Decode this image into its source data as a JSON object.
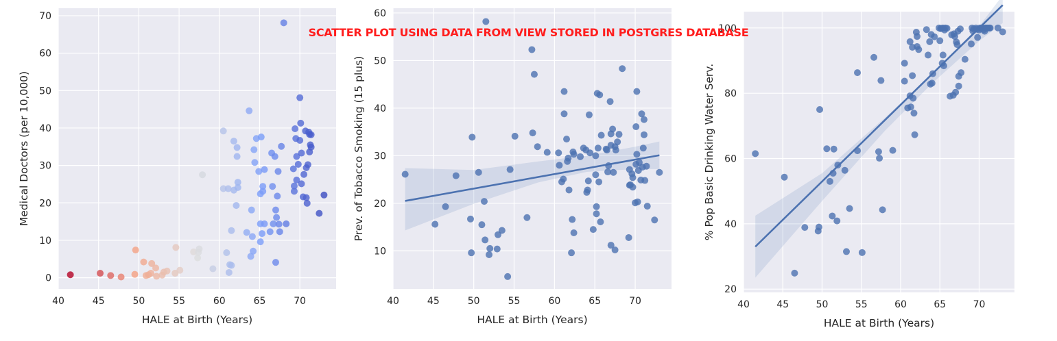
{
  "title": "SCATTER PLOT USING DATA FROM VIEW STORED IN POSTGRES DATABASE",
  "chart_data": [
    {
      "type": "scatter",
      "xlabel": "HALE at Birth (Years)",
      "ylabel": "Medical Doctors (per 10,000)",
      "xlim": [
        40,
        74.5
      ],
      "ylim": [
        -3,
        72
      ],
      "xticks": [
        "40",
        "45",
        "50",
        "55",
        "60",
        "65",
        "70"
      ],
      "yticks": [
        "0",
        "10",
        "20",
        "30",
        "40",
        "50",
        "60",
        "70"
      ],
      "color_scale": "coolwarm (x reversed: low HALE red, high HALE blue)",
      "grid": true,
      "points": [
        [
          41.5,
          0.8
        ],
        [
          45.2,
          1.2
        ],
        [
          46.5,
          0.6
        ],
        [
          47.8,
          0.2
        ],
        [
          49.5,
          0.9
        ],
        [
          49.6,
          7.4
        ],
        [
          50.6,
          4.2
        ],
        [
          50.9,
          0.6
        ],
        [
          51.2,
          0.8
        ],
        [
          51.5,
          1.2
        ],
        [
          51.6,
          3.8
        ],
        [
          52.1,
          2.6
        ],
        [
          52.2,
          0.4
        ],
        [
          52.9,
          0.7
        ],
        [
          53.1,
          1.5
        ],
        [
          53.5,
          1.8
        ],
        [
          54.5,
          1.2
        ],
        [
          54.6,
          8.1
        ],
        [
          55.1,
          2.0
        ],
        [
          56.8,
          6.9
        ],
        [
          57.3,
          5.3
        ],
        [
          57.4,
          6.8
        ],
        [
          57.5,
          7.7
        ],
        [
          57.9,
          27.5
        ],
        [
          59.2,
          2.4
        ],
        [
          60.5,
          39.2
        ],
        [
          60.5,
          23.8
        ],
        [
          60.9,
          6.7
        ],
        [
          61.1,
          23.8
        ],
        [
          61.2,
          1.4
        ],
        [
          61.3,
          3.5
        ],
        [
          61.5,
          3.3
        ],
        [
          61.5,
          12.6
        ],
        [
          61.8,
          23.4
        ],
        [
          61.8,
          36.5
        ],
        [
          62.1,
          19.3
        ],
        [
          62.2,
          34.8
        ],
        [
          62.2,
          32.4
        ],
        [
          62.3,
          24.1
        ],
        [
          62.3,
          25.5
        ],
        [
          63.4,
          12.1
        ],
        [
          63.7,
          44.6
        ],
        [
          63.9,
          5.7
        ],
        [
          64.0,
          18.1
        ],
        [
          64.1,
          11.0
        ],
        [
          64.2,
          7.1
        ],
        [
          64.3,
          34.2
        ],
        [
          64.4,
          30.8
        ],
        [
          64.6,
          37.2
        ],
        [
          64.9,
          28.4
        ],
        [
          65.1,
          22.4
        ],
        [
          65.1,
          9.6
        ],
        [
          65.1,
          14.4
        ],
        [
          65.2,
          37.6
        ],
        [
          65.3,
          11.8
        ],
        [
          65.4,
          24.4
        ],
        [
          65.4,
          23.1
        ],
        [
          65.6,
          14.4
        ],
        [
          65.6,
          28.9
        ],
        [
          66.3,
          12.3
        ],
        [
          66.5,
          33.3
        ],
        [
          66.6,
          24.4
        ],
        [
          66.7,
          14.4
        ],
        [
          66.9,
          32.4
        ],
        [
          67.0,
          4.1
        ],
        [
          67.0,
          18.1
        ],
        [
          67.1,
          16.1
        ],
        [
          67.2,
          21.8
        ],
        [
          67.3,
          28.4
        ],
        [
          67.4,
          14.3
        ],
        [
          67.5,
          12.3
        ],
        [
          67.7,
          35.1
        ],
        [
          68.0,
          68.1
        ],
        [
          68.3,
          14.4
        ],
        [
          69.2,
          29.1
        ],
        [
          69.3,
          24.5
        ],
        [
          69.3,
          23.1
        ],
        [
          69.4,
          39.8
        ],
        [
          69.5,
          37.2
        ],
        [
          69.6,
          26.1
        ],
        [
          69.6,
          32.4
        ],
        [
          69.8,
          30.3
        ],
        [
          70.0,
          48.1
        ],
        [
          70.0,
          36.7
        ],
        [
          70.1,
          41.3
        ],
        [
          70.2,
          33.3
        ],
        [
          70.2,
          25.1
        ],
        [
          70.4,
          21.6
        ],
        [
          70.5,
          27.6
        ],
        [
          70.7,
          39.2
        ],
        [
          70.8,
          21.4
        ],
        [
          70.8,
          29.4
        ],
        [
          70.9,
          19.9
        ],
        [
          71.0,
          30.2
        ],
        [
          71.1,
          38.9
        ],
        [
          71.2,
          38.3
        ],
        [
          71.2,
          33.6
        ],
        [
          71.3,
          35.5
        ],
        [
          71.4,
          34.9
        ],
        [
          71.4,
          38.2
        ],
        [
          72.4,
          17.2
        ],
        [
          73.0,
          22.1
        ]
      ]
    },
    {
      "type": "scatter",
      "xlabel": "HALE at Birth (Years)",
      "ylabel": "Prev. of Tobacco Smoking (15 plus)",
      "xlim": [
        40,
        74.5
      ],
      "ylim": [
        2,
        61
      ],
      "xticks": [
        "40",
        "45",
        "50",
        "55",
        "60",
        "65",
        "70"
      ],
      "yticks": [
        "10",
        "20",
        "30",
        "40",
        "50",
        "60"
      ],
      "regression": {
        "x": [
          41.5,
          73.0
        ],
        "y": [
          20.5,
          30.1
        ],
        "ci": {
          "x": [
            41.5,
            50,
            58,
            64,
            70,
            73
          ],
          "lower": [
            14.3,
            19.9,
            24.4,
            26.6,
            27.2,
            27.2
          ],
          "upper": [
            27.4,
            27.0,
            28.8,
            30.0,
            31.9,
            33.0
          ]
        }
      },
      "grid": true,
      "points": [
        [
          41.5,
          26.1
        ],
        [
          45.2,
          15.6
        ],
        [
          46.5,
          19.3
        ],
        [
          47.8,
          25.8
        ],
        [
          49.6,
          16.7
        ],
        [
          49.7,
          9.6
        ],
        [
          49.8,
          33.9
        ],
        [
          50.6,
          26.5
        ],
        [
          51.0,
          15.5
        ],
        [
          51.3,
          20.4
        ],
        [
          51.4,
          12.3
        ],
        [
          51.5,
          58.2
        ],
        [
          51.9,
          9.2
        ],
        [
          52.0,
          10.5
        ],
        [
          52.9,
          10.4
        ],
        [
          53.0,
          13.4
        ],
        [
          53.5,
          14.3
        ],
        [
          54.2,
          4.6
        ],
        [
          54.5,
          27.1
        ],
        [
          55.1,
          34.1
        ],
        [
          56.6,
          17.0
        ],
        [
          57.2,
          52.3
        ],
        [
          57.3,
          34.8
        ],
        [
          57.5,
          47.1
        ],
        [
          57.9,
          31.9
        ],
        [
          59.1,
          30.7
        ],
        [
          60.5,
          30.6
        ],
        [
          60.6,
          28.0
        ],
        [
          60.9,
          24.5
        ],
        [
          61.1,
          25.1
        ],
        [
          61.2,
          38.8
        ],
        [
          61.2,
          43.5
        ],
        [
          61.5,
          33.5
        ],
        [
          61.6,
          28.8
        ],
        [
          61.7,
          29.5
        ],
        [
          61.8,
          22.8
        ],
        [
          62.1,
          9.6
        ],
        [
          62.2,
          16.6
        ],
        [
          62.3,
          30.8
        ],
        [
          62.4,
          13.8
        ],
        [
          62.4,
          30.3
        ],
        [
          63.2,
          29.8
        ],
        [
          63.6,
          31.6
        ],
        [
          63.9,
          31.2
        ],
        [
          64.0,
          22.3
        ],
        [
          64.1,
          22.8
        ],
        [
          64.2,
          24.7
        ],
        [
          64.3,
          38.6
        ],
        [
          64.4,
          30.6
        ],
        [
          64.8,
          14.5
        ],
        [
          65.1,
          30.0
        ],
        [
          65.1,
          26.0
        ],
        [
          65.2,
          17.8
        ],
        [
          65.2,
          19.3
        ],
        [
          65.3,
          43.1
        ],
        [
          65.4,
          31.6
        ],
        [
          65.5,
          24.5
        ],
        [
          65.6,
          42.8
        ],
        [
          65.7,
          16.1
        ],
        [
          65.8,
          34.3
        ],
        [
          66.4,
          31.4
        ],
        [
          66.5,
          31.2
        ],
        [
          66.6,
          26.6
        ],
        [
          66.7,
          27.9
        ],
        [
          66.9,
          41.4
        ],
        [
          67.0,
          32.2
        ],
        [
          67.0,
          34.6
        ],
        [
          67.0,
          11.2
        ],
        [
          67.2,
          35.6
        ],
        [
          67.3,
          26.5
        ],
        [
          67.5,
          10.2
        ],
        [
          67.5,
          31.9
        ],
        [
          67.6,
          31.2
        ],
        [
          67.8,
          32.9
        ],
        [
          68.0,
          34.5
        ],
        [
          68.4,
          48.3
        ],
        [
          69.2,
          12.8
        ],
        [
          69.3,
          23.8
        ],
        [
          69.3,
          27.1
        ],
        [
          69.4,
          23.9
        ],
        [
          69.6,
          26.2
        ],
        [
          69.7,
          23.4
        ],
        [
          69.7,
          25.4
        ],
        [
          70.0,
          20.1
        ],
        [
          70.1,
          28.2
        ],
        [
          70.1,
          36.1
        ],
        [
          70.2,
          30.3
        ],
        [
          70.2,
          43.5
        ],
        [
          70.3,
          20.3
        ],
        [
          70.4,
          26.9
        ],
        [
          70.5,
          28.6
        ],
        [
          70.7,
          24.9
        ],
        [
          70.8,
          38.8
        ],
        [
          70.9,
          27.6
        ],
        [
          71.0,
          31.6
        ],
        [
          71.1,
          37.6
        ],
        [
          71.1,
          34.4
        ],
        [
          71.2,
          24.8
        ],
        [
          71.4,
          27.8
        ],
        [
          71.5,
          19.4
        ],
        [
          72.4,
          16.5
        ],
        [
          73.0,
          26.5
        ]
      ]
    },
    {
      "type": "scatter",
      "xlabel": "HALE at Birth (Years)",
      "ylabel": "% Pop Basic Drinking Water Serv.",
      "xlim": [
        40,
        74.5
      ],
      "ylim": [
        19,
        105
      ],
      "xticks": [
        "40",
        "45",
        "50",
        "55",
        "60",
        "65",
        "70"
      ],
      "yticks": [
        "20",
        "40",
        "60",
        "80",
        "100"
      ],
      "regression": {
        "x": [
          41.5,
          73.0
        ],
        "y": [
          33.0,
          107.0
        ],
        "ci": {
          "x": [
            41.5,
            50,
            58,
            64,
            70,
            73
          ],
          "lower": [
            23.5,
            47.0,
            68.5,
            83.0,
            96.0,
            101.5
          ],
          "upper": [
            42.5,
            55.5,
            72.5,
            85.8,
            100.5,
            110.0
          ]
        }
      },
      "grid": true,
      "points": [
        [
          41.5,
          61.5
        ],
        [
          45.2,
          54.3
        ],
        [
          46.5,
          24.9
        ],
        [
          47.8,
          38.9
        ],
        [
          49.5,
          37.8
        ],
        [
          49.6,
          39.0
        ],
        [
          49.7,
          75.0
        ],
        [
          50.6,
          63.0
        ],
        [
          51.0,
          53.0
        ],
        [
          51.3,
          42.4
        ],
        [
          51.4,
          55.5
        ],
        [
          51.5,
          62.9
        ],
        [
          51.9,
          40.9
        ],
        [
          52.0,
          58.0
        ],
        [
          52.9,
          56.4
        ],
        [
          53.1,
          31.5
        ],
        [
          53.5,
          44.7
        ],
        [
          54.5,
          86.3
        ],
        [
          54.5,
          62.4
        ],
        [
          55.1,
          31.2
        ],
        [
          56.6,
          91.0
        ],
        [
          57.2,
          62.1
        ],
        [
          57.3,
          60.1
        ],
        [
          57.5,
          83.9
        ],
        [
          57.7,
          44.3
        ],
        [
          59.0,
          62.5
        ],
        [
          60.5,
          89.2
        ],
        [
          60.5,
          83.7
        ],
        [
          60.9,
          75.5
        ],
        [
          61.2,
          95.8
        ],
        [
          61.2,
          79.2
        ],
        [
          61.3,
          75.8
        ],
        [
          61.5,
          85.4
        ],
        [
          61.5,
          94.1
        ],
        [
          61.6,
          78.5
        ],
        [
          61.7,
          73.9
        ],
        [
          61.8,
          67.3
        ],
        [
          62.0,
          98.7
        ],
        [
          62.1,
          94.3
        ],
        [
          62.1,
          97.4
        ],
        [
          62.3,
          93.4
        ],
        [
          63.3,
          99.5
        ],
        [
          63.5,
          91.7
        ],
        [
          63.7,
          95.8
        ],
        [
          63.8,
          82.8
        ],
        [
          63.9,
          98.0
        ],
        [
          64.0,
          83.1
        ],
        [
          64.1,
          86.0
        ],
        [
          64.3,
          97.3
        ],
        [
          64.9,
          100.0
        ],
        [
          65.0,
          96.1
        ],
        [
          65.1,
          99.8
        ],
        [
          65.2,
          99.9
        ],
        [
          65.3,
          89.2
        ],
        [
          65.4,
          91.7
        ],
        [
          65.4,
          100.0
        ],
        [
          65.5,
          88.4
        ],
        [
          65.6,
          99.4
        ],
        [
          65.7,
          100.0
        ],
        [
          65.9,
          99.9
        ],
        [
          66.3,
          79.1
        ],
        [
          66.5,
          97.9
        ],
        [
          66.7,
          79.4
        ],
        [
          66.8,
          98.2
        ],
        [
          66.9,
          97.4
        ],
        [
          67.0,
          80.3
        ],
        [
          67.1,
          95.7
        ],
        [
          67.2,
          94.9
        ],
        [
          67.3,
          99.0
        ],
        [
          67.4,
          85.2
        ],
        [
          67.4,
          82.2
        ],
        [
          67.6,
          99.7
        ],
        [
          67.7,
          86.3
        ],
        [
          68.2,
          90.4
        ],
        [
          69.0,
          95.1
        ],
        [
          69.1,
          100.0
        ],
        [
          69.2,
          99.1
        ],
        [
          69.3,
          99.7
        ],
        [
          69.6,
          100.0
        ],
        [
          69.7,
          99.6
        ],
        [
          69.8,
          97.1
        ],
        [
          70.0,
          99.4
        ],
        [
          70.1,
          100.0
        ],
        [
          70.2,
          99.8
        ],
        [
          70.3,
          100.0
        ],
        [
          70.4,
          100.0
        ],
        [
          70.6,
          99.5
        ],
        [
          70.7,
          99.0
        ],
        [
          70.8,
          100.0
        ],
        [
          70.9,
          100.0
        ],
        [
          71.0,
          99.9
        ],
        [
          71.1,
          100.0
        ],
        [
          71.3,
          100.0
        ],
        [
          71.4,
          100.0
        ],
        [
          72.4,
          100.0
        ],
        [
          73.0,
          98.8
        ]
      ]
    }
  ]
}
